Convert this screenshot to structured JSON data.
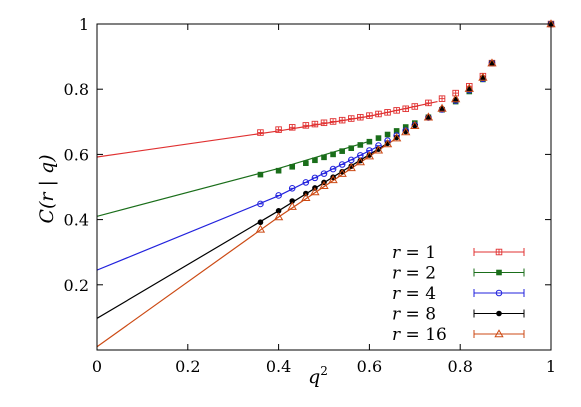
{
  "chart_data": {
    "type": "scatter",
    "title": "",
    "xlabel": "q²",
    "ylabel": "C(r | q)",
    "xlim": [
      0,
      1
    ],
    "ylim": [
      0.0,
      1.0
    ],
    "xticks": [
      "0",
      "0.2",
      "0.4",
      "0.6",
      "0.8",
      "1"
    ],
    "xtick_values": [
      0,
      0.2,
      0.4,
      0.6,
      0.8,
      1.0
    ],
    "yticks": [
      "0.2",
      "0.4",
      "0.6",
      "0.8",
      "1"
    ],
    "ytick_values": [
      0.2,
      0.4,
      0.6,
      0.8,
      1.0
    ],
    "grid": false,
    "legend_position": "bottom-right",
    "series": [
      {
        "name": "r = 1",
        "color": "#e03030",
        "marker": "open-square",
        "x": [
          0.36,
          0.4,
          0.43,
          0.46,
          0.48,
          0.5,
          0.52,
          0.54,
          0.56,
          0.58,
          0.6,
          0.62,
          0.64,
          0.66,
          0.68,
          0.7,
          0.73,
          0.76,
          0.79,
          0.82,
          0.85,
          0.87,
          1.0
        ],
        "y": [
          0.667,
          0.676,
          0.683,
          0.689,
          0.693,
          0.697,
          0.701,
          0.705,
          0.71,
          0.714,
          0.719,
          0.724,
          0.729,
          0.735,
          0.74,
          0.747,
          0.758,
          0.771,
          0.788,
          0.809,
          0.84,
          0.88,
          1.0
        ],
        "fit": [
          [
            0.0,
            0.592
          ],
          [
            0.4,
            0.672
          ],
          [
            0.6,
            0.717
          ],
          [
            0.75,
            0.762
          ]
        ]
      },
      {
        "name": "r = 2",
        "color": "#1a6e1a",
        "marker": "filled-square",
        "x": [
          0.36,
          0.4,
          0.43,
          0.46,
          0.48,
          0.5,
          0.52,
          0.54,
          0.56,
          0.58,
          0.6,
          0.62,
          0.64,
          0.66,
          0.68,
          0.7,
          0.73,
          0.76,
          0.79,
          0.82,
          0.85,
          0.87,
          1.0
        ],
        "y": [
          0.538,
          0.55,
          0.562,
          0.573,
          0.582,
          0.591,
          0.6,
          0.61,
          0.619,
          0.629,
          0.639,
          0.65,
          0.661,
          0.672,
          0.684,
          0.696,
          0.714,
          0.737,
          0.762,
          0.793,
          0.83,
          0.88,
          1.0
        ],
        "fit": [
          [
            0.0,
            0.41
          ],
          [
            0.4,
            0.557
          ],
          [
            0.6,
            0.64
          ]
        ]
      },
      {
        "name": "r = 4",
        "color": "#2222dd",
        "marker": "open-circle",
        "x": [
          0.36,
          0.4,
          0.43,
          0.46,
          0.48,
          0.5,
          0.52,
          0.54,
          0.56,
          0.58,
          0.6,
          0.62,
          0.64,
          0.66,
          0.68,
          0.7,
          0.73,
          0.76,
          0.79,
          0.82,
          0.85,
          0.87,
          1.0
        ],
        "y": [
          0.448,
          0.474,
          0.496,
          0.514,
          0.528,
          0.541,
          0.555,
          0.569,
          0.583,
          0.597,
          0.612,
          0.627,
          0.642,
          0.658,
          0.673,
          0.69,
          0.713,
          0.738,
          0.765,
          0.797,
          0.832,
          0.88,
          1.0
        ],
        "fit": [
          [
            0.0,
            0.245
          ],
          [
            0.4,
            0.473
          ],
          [
            0.62,
            0.625
          ]
        ]
      },
      {
        "name": "r = 8",
        "color": "#000000",
        "marker": "filled-circle",
        "x": [
          0.36,
          0.4,
          0.43,
          0.46,
          0.48,
          0.5,
          0.52,
          0.54,
          0.56,
          0.58,
          0.6,
          0.62,
          0.64,
          0.66,
          0.68,
          0.7,
          0.73,
          0.76,
          0.79,
          0.82,
          0.85,
          0.87,
          1.0
        ],
        "y": [
          0.392,
          0.427,
          0.457,
          0.48,
          0.497,
          0.514,
          0.53,
          0.547,
          0.564,
          0.581,
          0.598,
          0.616,
          0.634,
          0.652,
          0.67,
          0.689,
          0.714,
          0.74,
          0.768,
          0.8,
          0.835,
          0.88,
          1.0
        ],
        "fit": [
          [
            0.0,
            0.097
          ],
          [
            0.4,
            0.427
          ],
          [
            0.64,
            0.634
          ]
        ]
      },
      {
        "name": "r = 16",
        "color": "#cc4a14",
        "marker": "open-triangle",
        "x": [
          0.36,
          0.4,
          0.43,
          0.46,
          0.48,
          0.5,
          0.52,
          0.54,
          0.56,
          0.58,
          0.6,
          0.62,
          0.64,
          0.66,
          0.68,
          0.7,
          0.73,
          0.76,
          0.79,
          0.82,
          0.85,
          0.87,
          1.0
        ],
        "y": [
          0.37,
          0.408,
          0.44,
          0.467,
          0.485,
          0.504,
          0.522,
          0.541,
          0.559,
          0.577,
          0.595,
          0.613,
          0.632,
          0.65,
          0.669,
          0.688,
          0.714,
          0.741,
          0.77,
          0.802,
          0.836,
          0.88,
          1.0
        ],
        "fit": [
          [
            0.0,
            0.01
          ],
          [
            0.4,
            0.408
          ],
          [
            0.66,
            0.65
          ]
        ]
      }
    ],
    "legend_labels": {
      "r": "r",
      "eq": "=",
      "values": [
        "1",
        "2",
        "4",
        "8",
        "16"
      ]
    }
  }
}
